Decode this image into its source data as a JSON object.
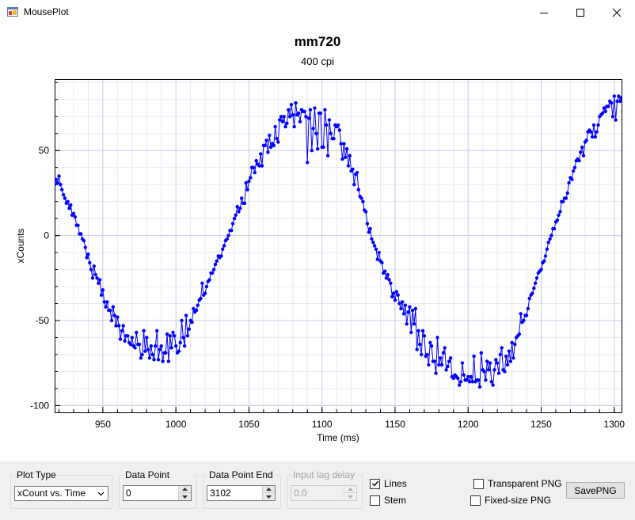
{
  "window": {
    "title": "MousePlot",
    "icon": "app-window-icon",
    "controls": [
      "minimize-icon",
      "maximize-icon",
      "close-icon"
    ]
  },
  "plot": {
    "title": "mm720",
    "subtitle": "400 cpi"
  },
  "chart_data": {
    "type": "line",
    "xlabel": "Time (ms)",
    "ylabel": "xCounts",
    "xlim": [
      917,
      1305
    ],
    "ylim": [
      -104,
      92
    ],
    "xticks": [
      950,
      1000,
      1050,
      1100,
      1150,
      1200,
      1250,
      1300
    ],
    "yticks": [
      50,
      0,
      -50,
      -100
    ],
    "grid": true,
    "markers": true,
    "color": "#0000ff",
    "x_start": 917,
    "x_step": 1,
    "values": [
      30,
      33,
      31,
      35,
      30,
      27,
      24,
      22,
      19,
      20,
      16,
      18,
      12,
      13,
      11,
      6,
      6,
      1,
      1,
      -2,
      -3,
      -7,
      -13,
      -11,
      -16,
      -20,
      -25,
      -18,
      -23,
      -25,
      -28,
      -26,
      -35,
      -32,
      -39,
      -42,
      -39,
      -44,
      -44,
      -50,
      -42,
      -47,
      -53,
      -48,
      -53,
      -61,
      -56,
      -53,
      -62,
      -59,
      -59,
      -63,
      -64,
      -60,
      -65,
      -66,
      -57,
      -64,
      -64,
      -72,
      -70,
      -56,
      -68,
      -60,
      -67,
      -72,
      -65,
      -70,
      -73,
      -65,
      -56,
      -73,
      -67,
      -65,
      -74,
      -69,
      -69,
      -58,
      -74,
      -59,
      -66,
      -57,
      -59,
      -65,
      -69,
      -68,
      -63,
      -50,
      -60,
      -65,
      -47,
      -59,
      -55,
      -50,
      -51,
      -43,
      -45,
      -44,
      -41,
      -38,
      -37,
      -28,
      -35,
      -34,
      -30,
      -27,
      -26,
      -22,
      -22,
      -20,
      -17,
      -15,
      -12,
      -13,
      -12,
      -8,
      -6,
      -3,
      -2,
      0,
      3,
      3,
      7,
      10,
      12,
      17,
      14,
      16,
      22,
      19,
      19,
      31,
      27,
      32,
      34,
      40,
      40,
      37,
      44,
      42,
      41,
      48,
      41,
      53,
      53,
      56,
      49,
      59,
      52,
      54,
      53,
      64,
      57,
      55,
      68,
      70,
      67,
      70,
      64,
      66,
      74,
      70,
      77,
      71,
      64,
      78,
      71,
      72,
      67,
      74,
      73,
      73,
      70,
      43,
      69,
      74,
      50,
      63,
      75,
      60,
      51,
      72,
      72,
      52,
      52,
      74,
      65,
      47,
      68,
      60,
      57,
      57,
      65,
      64,
      65,
      62,
      54,
      45,
      54,
      46,
      51,
      41,
      47,
      38,
      39,
      30,
      36,
      37,
      27,
      23,
      22,
      20,
      15,
      14,
      7,
      2,
      4,
      -2,
      -4,
      -6,
      -8,
      -14,
      -10,
      -15,
      -16,
      -22,
      -21,
      -25,
      -23,
      -26,
      -28,
      -36,
      -34,
      -38,
      -33,
      -35,
      -40,
      -43,
      -39,
      -46,
      -41,
      -52,
      -45,
      -42,
      -57,
      -44,
      -52,
      -43,
      -67,
      -56,
      -64,
      -70,
      -56,
      -59,
      -71,
      -70,
      -76,
      -63,
      -65,
      -74,
      -74,
      -81,
      -60,
      -76,
      -72,
      -76,
      -69,
      -66,
      -79,
      -77,
      -74,
      -72,
      -83,
      -84,
      -82,
      -83,
      -84,
      -88,
      -86,
      -75,
      -82,
      -85,
      -85,
      -83,
      -86,
      -83,
      -86,
      -71,
      -86,
      -85,
      -85,
      -89,
      -69,
      -79,
      -80,
      -85,
      -74,
      -79,
      -75,
      -86,
      -88,
      -79,
      -73,
      -75,
      -81,
      -70,
      -66,
      -79,
      -80,
      -71,
      -76,
      -68,
      -74,
      -63,
      -72,
      -64,
      -60,
      -59,
      -58,
      -46,
      -51,
      -50,
      -47,
      -47,
      -43,
      -37,
      -35,
      -34,
      -31,
      -28,
      -25,
      -22,
      -21,
      -20,
      -16,
      -15,
      -12,
      -8,
      -4,
      -2,
      0,
      4,
      4,
      8,
      9,
      12,
      14,
      20,
      20,
      22,
      22,
      25,
      31,
      34,
      33,
      38,
      40,
      44,
      45,
      44,
      49,
      52,
      47,
      55,
      56,
      61,
      62,
      61,
      58,
      65,
      58,
      61,
      65,
      70,
      71,
      72,
      75,
      73,
      76,
      76,
      79,
      78,
      70,
      82,
      68,
      79,
      82,
      79,
      81,
      73,
      77,
      66,
      71,
      68,
      73,
      71,
      67,
      81
    ]
  },
  "controls": {
    "plot_type": {
      "label": "Plot Type",
      "value": "xCount vs. Time"
    },
    "start": {
      "label": "Data Point Start",
      "value": "0"
    },
    "end": {
      "label": "Data Point End",
      "value": "3102"
    },
    "lag": {
      "label": "Input lag delay",
      "value": "0.0"
    },
    "lines": {
      "label": "Lines",
      "checked": true
    },
    "stem": {
      "label": "Stem",
      "checked": false
    },
    "transparent": {
      "label": "Transparent PNG",
      "checked": false
    },
    "fixed": {
      "label": "Fixed-size PNG",
      "checked": false
    },
    "save_label": "SavePNG"
  }
}
